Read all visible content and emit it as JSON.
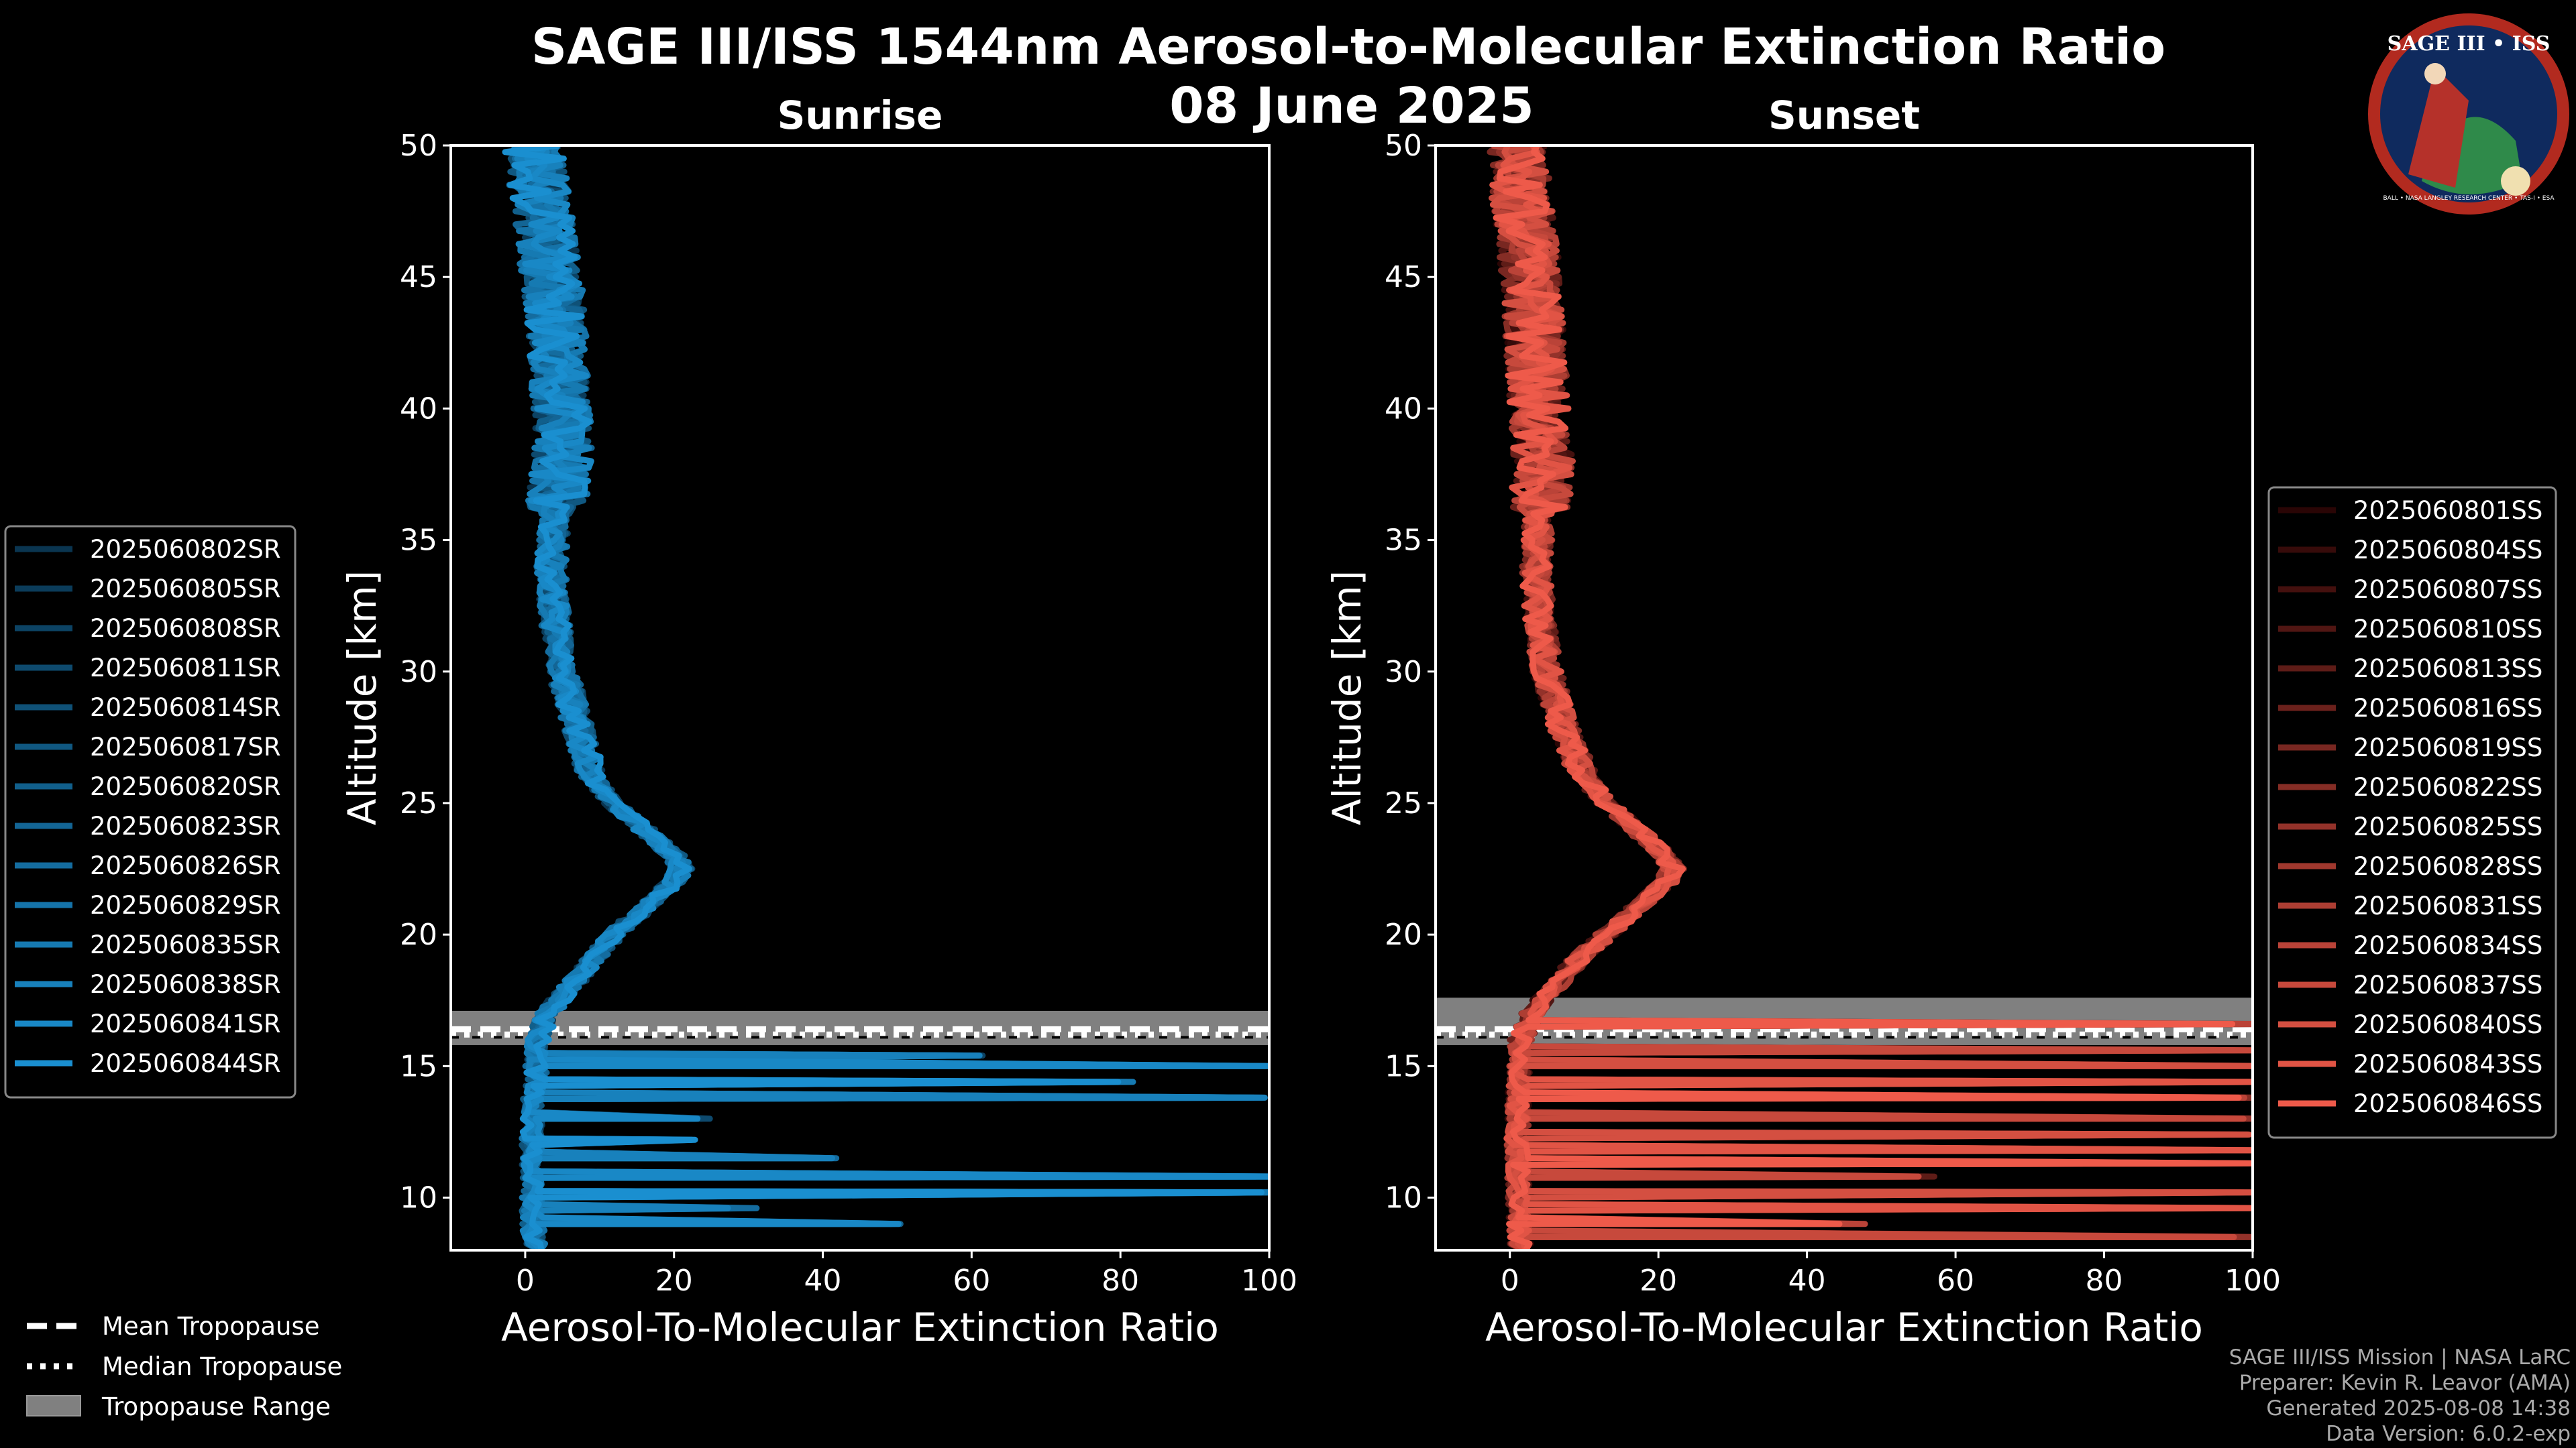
{
  "figure": {
    "title_line1": "SAGE III/ISS 1544nm Aerosol-to-Molecular Extinction Ratio",
    "title_line2": "08 June 2025"
  },
  "logo": {
    "text_top": "SAGE III • ISS",
    "text_ring": "BALL • NASA LANGLEY RESEARCH CENTER • TAS-I • ESA"
  },
  "credits": [
    "SAGE III/ISS Mission | NASA LaRC",
    "Preparer: Kevin R. Leavor (AMA)",
    "Generated 2025-08-08 14:38",
    "Data Version: 6.0.2-exp"
  ],
  "tropo_legend": [
    {
      "label": "Mean Tropopause",
      "style": "dashed"
    },
    {
      "label": "Median Tropopause",
      "style": "dotted"
    },
    {
      "label": "Tropopause Range",
      "style": "patch"
    }
  ],
  "chart_data": [
    {
      "type": "line",
      "panel": "sunrise",
      "title": "Sunrise",
      "xlabel": "Aerosol-To-Molecular Extinction Ratio",
      "ylabel": "Altitude [km]",
      "xlim": [
        -10,
        100
      ],
      "ylim": [
        8,
        50
      ],
      "xticks": [
        0,
        20,
        40,
        60,
        80,
        100
      ],
      "yticks": [
        10,
        15,
        20,
        25,
        30,
        35,
        40,
        45,
        50
      ],
      "color_dark": "#0a3550",
      "color_light": "#1a8fd0",
      "tropopause": {
        "mean_km": 16.4,
        "median_km": 16.2,
        "range_km": [
          15.8,
          17.1
        ]
      },
      "mean_profile": [
        [
          8,
          1.2
        ],
        [
          10,
          1.0
        ],
        [
          12,
          1.0
        ],
        [
          14,
          1.2
        ],
        [
          16,
          1.8
        ],
        [
          17,
          3
        ],
        [
          18,
          6
        ],
        [
          19,
          9
        ],
        [
          20,
          12
        ],
        [
          21,
          16
        ],
        [
          22,
          20
        ],
        [
          22.5,
          21
        ],
        [
          23,
          20
        ],
        [
          24,
          16
        ],
        [
          25,
          12
        ],
        [
          26,
          9
        ],
        [
          28,
          7
        ],
        [
          30,
          5
        ],
        [
          32,
          4
        ],
        [
          34,
          3.5
        ],
        [
          36,
          4
        ],
        [
          38,
          5
        ],
        [
          40,
          5
        ],
        [
          42,
          4.5
        ],
        [
          44,
          4
        ],
        [
          46,
          3
        ],
        [
          48,
          2
        ],
        [
          50,
          1
        ]
      ],
      "spikes": [
        {
          "alt_km": 9,
          "x": 50
        },
        {
          "alt_km": 9.6,
          "x": 30
        },
        {
          "alt_km": 10.2,
          "x": 100
        },
        {
          "alt_km": 10.8,
          "x": 100
        },
        {
          "alt_km": 11.5,
          "x": 40
        },
        {
          "alt_km": 12.2,
          "x": 20
        },
        {
          "alt_km": 13,
          "x": 25
        },
        {
          "alt_km": 13.8,
          "x": 100
        },
        {
          "alt_km": 14.4,
          "x": 80
        },
        {
          "alt_km": 15,
          "x": 100
        },
        {
          "alt_km": 15.4,
          "x": 60
        }
      ],
      "series": [
        {
          "name": "2025060802SR"
        },
        {
          "name": "2025060805SR"
        },
        {
          "name": "2025060808SR"
        },
        {
          "name": "2025060811SR"
        },
        {
          "name": "2025060814SR"
        },
        {
          "name": "2025060817SR"
        },
        {
          "name": "2025060820SR"
        },
        {
          "name": "2025060823SR"
        },
        {
          "name": "2025060826SR"
        },
        {
          "name": "2025060829SR"
        },
        {
          "name": "2025060835SR"
        },
        {
          "name": "2025060838SR"
        },
        {
          "name": "2025060841SR"
        },
        {
          "name": "2025060844SR"
        }
      ]
    },
    {
      "type": "line",
      "panel": "sunset",
      "title": "Sunset",
      "xlabel": "Aerosol-To-Molecular Extinction Ratio",
      "ylabel": "Altitude [km]",
      "xlim": [
        -10,
        100
      ],
      "ylim": [
        8,
        50
      ],
      "xticks": [
        0,
        20,
        40,
        60,
        80,
        100
      ],
      "yticks": [
        10,
        15,
        20,
        25,
        30,
        35,
        40,
        45,
        50
      ],
      "color_dark": "#2a0505",
      "color_light": "#ee5a4a",
      "tropopause": {
        "mean_km": 16.4,
        "median_km": 16.2,
        "range_km": [
          15.8,
          17.6
        ]
      },
      "mean_profile": [
        [
          8,
          1.5
        ],
        [
          10,
          1.2
        ],
        [
          12,
          1.0
        ],
        [
          14,
          1.2
        ],
        [
          16,
          1.5
        ],
        [
          17,
          3
        ],
        [
          18,
          6
        ],
        [
          19,
          9
        ],
        [
          20,
          13
        ],
        [
          21,
          17
        ],
        [
          22,
          21
        ],
        [
          22.5,
          22
        ],
        [
          23,
          21
        ],
        [
          24,
          17
        ],
        [
          25,
          13
        ],
        [
          26,
          10
        ],
        [
          28,
          7
        ],
        [
          30,
          5
        ],
        [
          32,
          4
        ],
        [
          34,
          3.5
        ],
        [
          36,
          4
        ],
        [
          38,
          4.5
        ],
        [
          40,
          4
        ],
        [
          42,
          3.5
        ],
        [
          44,
          3
        ],
        [
          46,
          2.5
        ],
        [
          48,
          1.5
        ],
        [
          50,
          1
        ]
      ],
      "spikes": [
        {
          "alt_km": 8.5,
          "x": 100
        },
        {
          "alt_km": 9.0,
          "x": 45
        },
        {
          "alt_km": 9.6,
          "x": 100
        },
        {
          "alt_km": 10.2,
          "x": 100
        },
        {
          "alt_km": 10.8,
          "x": 55
        },
        {
          "alt_km": 11.3,
          "x": 100
        },
        {
          "alt_km": 11.8,
          "x": 100
        },
        {
          "alt_km": 12.4,
          "x": 100
        },
        {
          "alt_km": 13.0,
          "x": 100
        },
        {
          "alt_km": 13.8,
          "x": 100
        },
        {
          "alt_km": 14.4,
          "x": 100
        },
        {
          "alt_km": 15.0,
          "x": 100
        },
        {
          "alt_km": 15.6,
          "x": 100
        },
        {
          "alt_km": 16.6,
          "x": 100
        }
      ],
      "series": [
        {
          "name": "2025060801SS"
        },
        {
          "name": "2025060804SS"
        },
        {
          "name": "2025060807SS"
        },
        {
          "name": "2025060810SS"
        },
        {
          "name": "2025060813SS"
        },
        {
          "name": "2025060816SS"
        },
        {
          "name": "2025060819SS"
        },
        {
          "name": "2025060822SS"
        },
        {
          "name": "2025060825SS"
        },
        {
          "name": "2025060828SS"
        },
        {
          "name": "2025060831SS"
        },
        {
          "name": "2025060834SS"
        },
        {
          "name": "2025060837SS"
        },
        {
          "name": "2025060840SS"
        },
        {
          "name": "2025060843SS"
        },
        {
          "name": "2025060846SS"
        }
      ]
    }
  ]
}
